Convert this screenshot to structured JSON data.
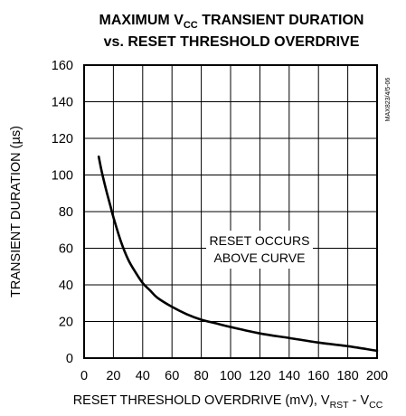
{
  "chart_data": {
    "type": "line",
    "title_line1_main": "MAXIMUM V",
    "title_line1_sub": "CC",
    "title_line1_rest": " TRANSIENT DURATION",
    "title_line2": "vs. RESET THRESHOLD OVERDRIVE",
    "xlabel_main": "RESET THRESHOLD OVERDRIVE (mV), V",
    "xlabel_sub1": "RST",
    "xlabel_mid": " - V",
    "xlabel_sub2": "CC",
    "ylabel": "TRANSIENT DURATION (µs)",
    "xlim": [
      0,
      200
    ],
    "ylim": [
      0,
      160
    ],
    "xticks": [
      "0",
      "20",
      "40",
      "60",
      "80",
      "100",
      "120",
      "140",
      "160",
      "180",
      "200"
    ],
    "yticks": [
      "0",
      "20",
      "40",
      "60",
      "80",
      "100",
      "120",
      "140",
      "160"
    ],
    "annotation_line1": "RESET OCCURS",
    "annotation_line2": "ABOVE CURVE",
    "figure_code": "MAX823/4/5-06",
    "grid": true,
    "series": [
      {
        "x": [
          10,
          12,
          15,
          18,
          20,
          25,
          30,
          35,
          40,
          45,
          50,
          60,
          70,
          80,
          90,
          100,
          120,
          140,
          160,
          180,
          200
        ],
        "y": [
          110,
          102,
          92,
          83,
          77,
          64,
          54,
          47,
          41,
          37,
          33,
          28,
          24,
          21,
          19,
          17,
          13.5,
          11,
          8.5,
          6.5,
          4
        ]
      }
    ]
  }
}
